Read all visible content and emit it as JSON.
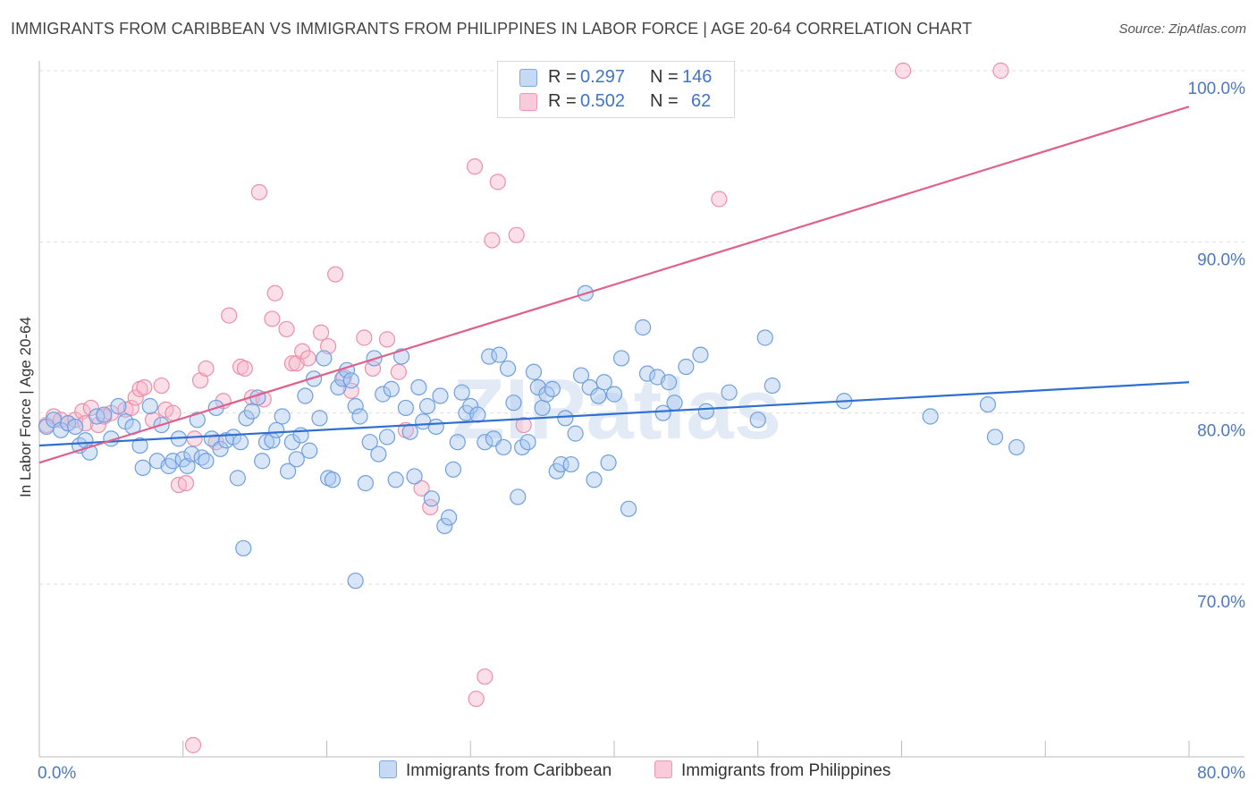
{
  "title": "IMMIGRANTS FROM CARIBBEAN VS IMMIGRANTS FROM PHILIPPINES IN LABOR FORCE | AGE 20-64 CORRELATION CHART",
  "source": "Source: ZipAtlas.com",
  "watermark": "ZIPatlas",
  "legend": {
    "caribbean": {
      "r_label": "R =",
      "r_value": "0.297",
      "n_label": "N =",
      "n_value": "146",
      "color": "#a9c8ef",
      "stroke": "#6f9fe0"
    },
    "philippines": {
      "r_label": "R =",
      "r_value": "0.502",
      "n_label": "N =",
      "n_value": "62",
      "color": "#f7b9cc",
      "stroke": "#ec8fab"
    }
  },
  "bottom_legend": {
    "caribbean": "Immigrants from Caribbean",
    "philippines": "Immigrants from Philippines"
  },
  "chart_data": {
    "type": "scatter",
    "title": "IMMIGRANTS FROM CARIBBEAN VS IMMIGRANTS FROM PHILIPPINES IN LABOR FORCE | AGE 20-64 CORRELATION CHART",
    "xlabel": "",
    "ylabel": "In Labor Force | Age 20-64",
    "xlim": [
      0,
      80
    ],
    "ylim": [
      61,
      101
    ],
    "x_tick_labels": [
      "0.0%",
      "80.0%"
    ],
    "y_ticks": [
      70,
      80,
      90,
      100
    ],
    "y_tick_labels": [
      "70.0%",
      "80.0%",
      "90.0%",
      "100.0%"
    ],
    "grid": "horizontal dashed",
    "series": [
      {
        "name": "Immigrants from Caribbean",
        "color": "#a9c8ef",
        "stroke": "#6f9fe0",
        "trend": {
          "x": [
            0,
            80
          ],
          "y": [
            78.1,
            81.8
          ],
          "color": "#2f6fd0"
        },
        "points": [
          [
            0.5,
            79.2
          ],
          [
            1.0,
            79.6
          ],
          [
            1.5,
            79.0
          ],
          [
            2.0,
            79.4
          ],
          [
            2.5,
            79.2
          ],
          [
            2.8,
            78.1
          ],
          [
            3.2,
            78.4
          ],
          [
            3.5,
            77.7
          ],
          [
            4.0,
            79.8
          ],
          [
            4.5,
            79.9
          ],
          [
            5.0,
            78.5
          ],
          [
            5.5,
            80.4
          ],
          [
            6.0,
            79.5
          ],
          [
            6.5,
            79.2
          ],
          [
            7.0,
            78.1
          ],
          [
            7.2,
            76.8
          ],
          [
            7.7,
            80.4
          ],
          [
            8.2,
            77.2
          ],
          [
            8.5,
            79.3
          ],
          [
            9.0,
            76.9
          ],
          [
            9.3,
            77.2
          ],
          [
            9.7,
            78.5
          ],
          [
            10.0,
            77.3
          ],
          [
            10.3,
            76.9
          ],
          [
            10.6,
            77.6
          ],
          [
            11.0,
            79.6
          ],
          [
            11.3,
            77.4
          ],
          [
            11.6,
            77.2
          ],
          [
            12.0,
            78.5
          ],
          [
            12.3,
            80.3
          ],
          [
            12.6,
            77.9
          ],
          [
            13.0,
            78.4
          ],
          [
            13.5,
            78.6
          ],
          [
            13.8,
            76.2
          ],
          [
            14.0,
            78.3
          ],
          [
            14.4,
            79.7
          ],
          [
            14.8,
            80.1
          ],
          [
            15.2,
            80.9
          ],
          [
            15.5,
            77.2
          ],
          [
            15.8,
            78.3
          ],
          [
            16.2,
            78.4
          ],
          [
            16.5,
            79.0
          ],
          [
            16.9,
            79.8
          ],
          [
            17.3,
            76.6
          ],
          [
            17.6,
            78.3
          ],
          [
            17.9,
            77.3
          ],
          [
            18.2,
            78.7
          ],
          [
            18.5,
            81.0
          ],
          [
            18.8,
            77.8
          ],
          [
            19.1,
            82.0
          ],
          [
            19.5,
            79.7
          ],
          [
            19.8,
            83.2
          ],
          [
            20.1,
            76.2
          ],
          [
            20.4,
            76.1
          ],
          [
            20.8,
            81.5
          ],
          [
            21.1,
            82.0
          ],
          [
            21.4,
            82.5
          ],
          [
            21.7,
            81.9
          ],
          [
            22.0,
            80.4
          ],
          [
            22.3,
            79.8
          ],
          [
            22.7,
            75.9
          ],
          [
            23.0,
            78.3
          ],
          [
            23.3,
            83.2
          ],
          [
            23.6,
            77.6
          ],
          [
            23.9,
            81.1
          ],
          [
            24.2,
            78.6
          ],
          [
            24.5,
            81.4
          ],
          [
            24.8,
            76.1
          ],
          [
            25.2,
            83.3
          ],
          [
            25.5,
            80.3
          ],
          [
            25.8,
            78.9
          ],
          [
            26.1,
            76.3
          ],
          [
            26.4,
            81.5
          ],
          [
            26.7,
            79.5
          ],
          [
            27.0,
            80.4
          ],
          [
            27.3,
            75.0
          ],
          [
            27.6,
            79.2
          ],
          [
            27.9,
            81.0
          ],
          [
            28.2,
            73.4
          ],
          [
            28.5,
            73.9
          ],
          [
            28.8,
            76.7
          ],
          [
            29.1,
            78.3
          ],
          [
            29.4,
            81.2
          ],
          [
            29.7,
            80.0
          ],
          [
            30.0,
            80.4
          ],
          [
            30.5,
            79.9
          ],
          [
            31.0,
            78.3
          ],
          [
            31.3,
            83.3
          ],
          [
            31.6,
            78.5
          ],
          [
            32.0,
            83.4
          ],
          [
            32.3,
            78.0
          ],
          [
            32.6,
            82.6
          ],
          [
            33.0,
            80.6
          ],
          [
            33.3,
            75.1
          ],
          [
            33.6,
            78.0
          ],
          [
            34.0,
            78.3
          ],
          [
            34.4,
            82.4
          ],
          [
            34.7,
            81.5
          ],
          [
            35.0,
            80.3
          ],
          [
            35.3,
            81.1
          ],
          [
            35.7,
            81.4
          ],
          [
            36.0,
            76.6
          ],
          [
            36.3,
            77.0
          ],
          [
            36.6,
            79.7
          ],
          [
            37.0,
            77.0
          ],
          [
            37.3,
            78.8
          ],
          [
            37.7,
            82.2
          ],
          [
            38.0,
            87.0
          ],
          [
            38.3,
            81.5
          ],
          [
            38.6,
            76.1
          ],
          [
            38.9,
            81.0
          ],
          [
            39.3,
            81.8
          ],
          [
            39.6,
            77.1
          ],
          [
            40.0,
            81.1
          ],
          [
            40.5,
            83.2
          ],
          [
            41.0,
            74.4
          ],
          [
            42.0,
            85.0
          ],
          [
            42.3,
            82.3
          ],
          [
            43.0,
            82.1
          ],
          [
            43.4,
            80.0
          ],
          [
            43.8,
            81.8
          ],
          [
            44.2,
            80.6
          ],
          [
            45.0,
            82.7
          ],
          [
            46.0,
            83.4
          ],
          [
            46.4,
            80.1
          ],
          [
            48.0,
            81.2
          ],
          [
            50.0,
            79.6
          ],
          [
            50.5,
            84.4
          ],
          [
            51.0,
            81.6
          ],
          [
            56.0,
            80.7
          ],
          [
            62.0,
            79.8
          ],
          [
            66.0,
            80.5
          ],
          [
            66.5,
            78.6
          ],
          [
            68.0,
            78.0
          ],
          [
            14.2,
            72.1
          ],
          [
            22.0,
            70.2
          ]
        ]
      },
      {
        "name": "Immigrants from Philippines",
        "color": "#f7b9cc",
        "stroke": "#ec8fab",
        "trend": {
          "x": [
            0,
            80
          ],
          "y": [
            77.1,
            97.9
          ],
          "color": "#e0608a"
        },
        "points": [
          [
            0.5,
            79.3
          ],
          [
            1.0,
            79.8
          ],
          [
            1.5,
            79.6
          ],
          [
            2.0,
            79.4
          ],
          [
            2.5,
            79.6
          ],
          [
            3.0,
            80.1
          ],
          [
            3.2,
            79.4
          ],
          [
            3.6,
            80.3
          ],
          [
            4.1,
            79.3
          ],
          [
            4.5,
            79.8
          ],
          [
            5.0,
            80.0
          ],
          [
            6.0,
            80.2
          ],
          [
            6.4,
            80.3
          ],
          [
            6.7,
            80.9
          ],
          [
            7.0,
            81.4
          ],
          [
            7.3,
            81.5
          ],
          [
            7.9,
            79.6
          ],
          [
            8.5,
            81.6
          ],
          [
            8.8,
            80.2
          ],
          [
            9.3,
            80.0
          ],
          [
            9.7,
            75.8
          ],
          [
            10.2,
            75.9
          ],
          [
            10.8,
            78.5
          ],
          [
            11.2,
            81.9
          ],
          [
            11.6,
            82.6
          ],
          [
            12.3,
            78.3
          ],
          [
            12.8,
            80.7
          ],
          [
            13.2,
            85.7
          ],
          [
            14.0,
            82.7
          ],
          [
            14.3,
            82.6
          ],
          [
            14.8,
            80.9
          ],
          [
            15.3,
            92.9
          ],
          [
            15.6,
            80.8
          ],
          [
            16.2,
            85.5
          ],
          [
            16.4,
            87.0
          ],
          [
            17.2,
            84.9
          ],
          [
            17.6,
            82.9
          ],
          [
            17.9,
            82.9
          ],
          [
            18.3,
            83.6
          ],
          [
            18.7,
            83.2
          ],
          [
            19.6,
            84.7
          ],
          [
            20.1,
            83.9
          ],
          [
            20.6,
            88.1
          ],
          [
            21.2,
            82.1
          ],
          [
            21.7,
            81.3
          ],
          [
            22.6,
            84.4
          ],
          [
            23.2,
            82.6
          ],
          [
            24.2,
            84.3
          ],
          [
            25.0,
            82.4
          ],
          [
            25.5,
            79.0
          ],
          [
            26.6,
            75.6
          ],
          [
            27.2,
            74.5
          ],
          [
            30.3,
            94.4
          ],
          [
            31.5,
            90.1
          ],
          [
            31.9,
            93.5
          ],
          [
            33.2,
            90.4
          ],
          [
            33.7,
            79.3
          ],
          [
            47.3,
            92.5
          ],
          [
            60.1,
            100.0
          ],
          [
            66.9,
            100.0
          ],
          [
            31.0,
            64.6
          ],
          [
            30.4,
            63.3
          ],
          [
            10.7,
            60.6
          ]
        ]
      }
    ]
  }
}
